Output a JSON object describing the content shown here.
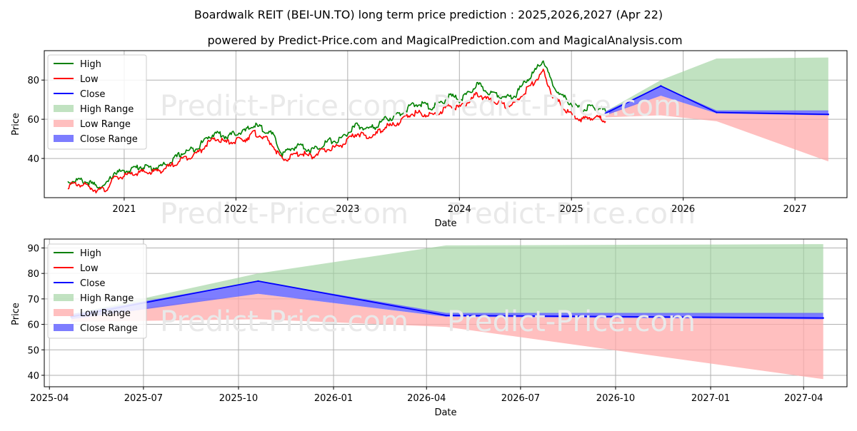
{
  "title": "Boardwalk REIT (BEI-UN.TO) long term price prediction : 2025,2026,2027 (Apr 22)",
  "subtitle": "powered by Predict-Price.com and MagicalPrediction.com and MagicalAnalysis.com",
  "watermark": "Predict-Price.com",
  "colors": {
    "high": "#008000",
    "low": "#ff0000",
    "close": "#0000ff",
    "high_range": "#9fd39f",
    "low_range": "#ffaaaa",
    "close_range": "#6666ff",
    "grid": "#b0b0b0"
  },
  "chart_data": [
    {
      "type": "line",
      "panel": "long-term",
      "xlabel": "Date",
      "ylabel": "Price",
      "x_ticks": [
        "2021",
        "2022",
        "2023",
        "2024",
        "2025",
        "2026",
        "2027"
      ],
      "y_ticks": [
        40,
        60,
        80
      ],
      "ylim": [
        20,
        95
      ],
      "xlim": [
        "2020-04-15",
        "2027-06-20"
      ],
      "grid": true,
      "legend_position": "top-left",
      "legend": [
        "High",
        "Low",
        "Close",
        "High Range",
        "Low Range",
        "Close Range"
      ],
      "history": {
        "dates": [
          "2020-07-01",
          "2020-08-01",
          "2020-09-01",
          "2020-10-01",
          "2020-11-01",
          "2020-12-01",
          "2021-01-01",
          "2021-02-01",
          "2021-03-01",
          "2021-04-01",
          "2021-05-01",
          "2021-06-01",
          "2021-07-01",
          "2021-08-01",
          "2021-09-01",
          "2021-10-01",
          "2021-11-01",
          "2021-12-01",
          "2022-01-01",
          "2022-02-01",
          "2022-03-01",
          "2022-04-01",
          "2022-05-01",
          "2022-06-01",
          "2022-07-01",
          "2022-08-01",
          "2022-09-01",
          "2022-10-01",
          "2022-11-01",
          "2022-12-01",
          "2023-01-01",
          "2023-02-01",
          "2023-03-01",
          "2023-04-01",
          "2023-05-01",
          "2023-06-01",
          "2023-07-01",
          "2023-08-01",
          "2023-09-01",
          "2023-10-01",
          "2023-11-01",
          "2023-12-01",
          "2024-01-01",
          "2024-02-01",
          "2024-03-01",
          "2024-04-01",
          "2024-05-01",
          "2024-06-01",
          "2024-07-01",
          "2024-08-01",
          "2024-09-01",
          "2024-10-01",
          "2024-11-01",
          "2024-12-01",
          "2025-01-01",
          "2025-02-01",
          "2025-03-01",
          "2025-04-01",
          "2025-04-22"
        ],
        "high": [
          28,
          29,
          28,
          26,
          26,
          33,
          33,
          35,
          36,
          35,
          36,
          38,
          42,
          44,
          46,
          51,
          53,
          51,
          53,
          54,
          57,
          55,
          52,
          42,
          45,
          47,
          44,
          46,
          49,
          49,
          53,
          57,
          55,
          56,
          60,
          61,
          64,
          67,
          68,
          66,
          68,
          72,
          70,
          73,
          78,
          74,
          73,
          71,
          72,
          79,
          84,
          90,
          77,
          72,
          68,
          65,
          66,
          66,
          64
        ],
        "low": [
          26,
          27,
          26,
          24,
          24,
          30,
          31,
          32,
          33,
          33,
          34,
          36,
          39,
          41,
          43,
          48,
          50,
          48,
          49,
          50,
          53,
          51,
          47,
          39,
          41,
          43,
          41,
          43,
          45,
          46,
          49,
          53,
          51,
          52,
          56,
          57,
          60,
          63,
          63,
          62,
          64,
          67,
          66,
          69,
          73,
          70,
          69,
          67,
          68,
          74,
          79,
          84,
          72,
          67,
          62,
          60,
          61,
          61,
          59
        ]
      },
      "forecast": {
        "dates": [
          "2025-04-22",
          "2025-10-20",
          "2026-04-20",
          "2027-04-20"
        ],
        "close": [
          63,
          77,
          63.5,
          62.5
        ],
        "close_range": [
          [
            62,
            64
          ],
          [
            72,
            77
          ],
          [
            63,
            64.5
          ],
          [
            62,
            64.5
          ]
        ],
        "high_range": [
          [
            63,
            64
          ],
          [
            77,
            80
          ],
          [
            64,
            91
          ],
          [
            64,
            91.5
          ]
        ],
        "low_range": [
          [
            61,
            63
          ],
          [
            62,
            72
          ],
          [
            59,
            63
          ],
          [
            38.5,
            62.5
          ]
        ]
      }
    },
    {
      "type": "line",
      "panel": "forecast-detail",
      "xlabel": "Date",
      "ylabel": "Price",
      "x_ticks": [
        "2025-04",
        "2025-07",
        "2025-10",
        "2026-01",
        "2026-04",
        "2026-07",
        "2026-10",
        "2027-01",
        "2027-04"
      ],
      "y_ticks": [
        40,
        50,
        60,
        70,
        80,
        90
      ],
      "ylim": [
        35.5,
        93.5
      ],
      "xlim": [
        "2025-03-27",
        "2027-05-13"
      ],
      "grid": true,
      "legend_position": "top-left",
      "legend": [
        "High",
        "Low",
        "Close",
        "High Range",
        "Low Range",
        "Close Range"
      ]
    }
  ]
}
